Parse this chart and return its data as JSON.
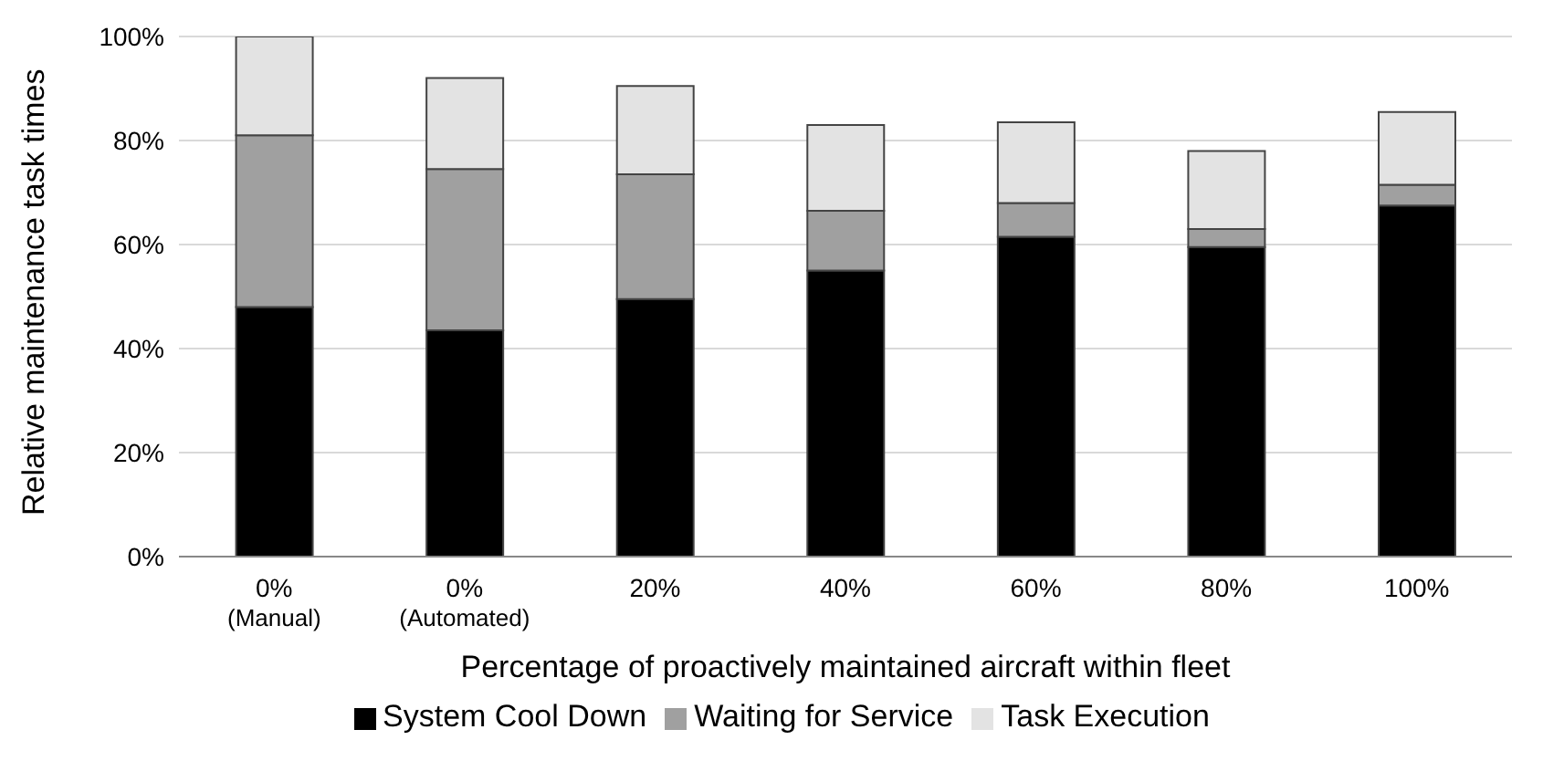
{
  "chart_data": {
    "type": "bar",
    "stacked": true,
    "xlabel": "Percentage of proactively maintained aircraft within fleet",
    "ylabel": "Relative maintenance task times",
    "categories": [
      "0%\n(Manual)",
      "0%\n(Automated)",
      "20%",
      "40%",
      "60%",
      "80%",
      "100%"
    ],
    "series": [
      {
        "name": "System Cool Down",
        "color": "#000000",
        "values": [
          48,
          43.5,
          49.5,
          55,
          61.5,
          59.5,
          67.5
        ]
      },
      {
        "name": "Waiting for Service",
        "color": "#a0a0a0",
        "values": [
          33,
          31,
          24,
          11.5,
          6.5,
          3.5,
          4
        ]
      },
      {
        "name": "Task Execution",
        "color": "#e3e3e3",
        "values": [
          19,
          17.5,
          17,
          16.5,
          15.5,
          15,
          14
        ]
      }
    ],
    "ylim": [
      0,
      100
    ],
    "yticks": [
      {
        "value": 0,
        "label": "0%"
      },
      {
        "value": 20,
        "label": "20%"
      },
      {
        "value": 40,
        "label": "40%"
      },
      {
        "value": 60,
        "label": "60%"
      },
      {
        "value": 80,
        "label": "80%"
      },
      {
        "value": 100,
        "label": "100%"
      }
    ],
    "grid": "y",
    "legend": "bottom"
  }
}
